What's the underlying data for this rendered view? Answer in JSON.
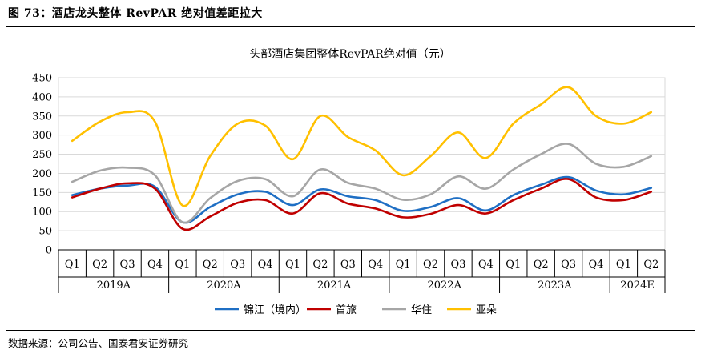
{
  "figure": {
    "title": "图 73：酒店龙头整体 RevPAR 绝对值差距拉大",
    "source": "数据来源：公司公告、国泰君安证券研究"
  },
  "chart_data": {
    "type": "line",
    "title": "头部酒店集团整体RevPAR绝对值（元）",
    "xlabel": "",
    "ylabel": "",
    "ylim": [
      0,
      450
    ],
    "yticks": [
      0,
      50,
      100,
      150,
      200,
      250,
      300,
      350,
      400,
      450
    ],
    "grid": true,
    "legend_position": "bottom",
    "categories": [
      "Q1",
      "Q2",
      "Q3",
      "Q4",
      "Q1",
      "Q2",
      "Q3",
      "Q4",
      "Q1",
      "Q2",
      "Q3",
      "Q4",
      "Q1",
      "Q2",
      "Q3",
      "Q4",
      "Q1",
      "Q2",
      "Q3",
      "Q4",
      "Q1",
      "Q2"
    ],
    "groups": [
      {
        "label": "2019A",
        "count": 4
      },
      {
        "label": "2020A",
        "count": 4
      },
      {
        "label": "2021A",
        "count": 4
      },
      {
        "label": "2022A",
        "count": 4
      },
      {
        "label": "2023A",
        "count": 4
      },
      {
        "label": "2024E",
        "count": 2
      }
    ],
    "series": [
      {
        "name": "锦江（境内）",
        "color": "#1f6fc4",
        "values": [
          143,
          160,
          168,
          165,
          72,
          112,
          145,
          152,
          117,
          158,
          140,
          130,
          102,
          112,
          135,
          103,
          143,
          170,
          190,
          155,
          145,
          162
        ]
      },
      {
        "name": "首旅",
        "color": "#c00000",
        "values": [
          137,
          160,
          174,
          160,
          55,
          87,
          123,
          130,
          95,
          148,
          121,
          108,
          85,
          94,
          117,
          95,
          130,
          160,
          185,
          137,
          130,
          152
        ]
      },
      {
        "name": "华住",
        "color": "#a6a6a6",
        "values": [
          178,
          207,
          215,
          195,
          72,
          135,
          180,
          185,
          140,
          210,
          175,
          160,
          131,
          145,
          192,
          160,
          210,
          250,
          277,
          225,
          217,
          245
        ]
      },
      {
        "name": "亚朵",
        "color": "#ffc000",
        "values": [
          285,
          335,
          360,
          335,
          116,
          245,
          330,
          325,
          237,
          350,
          295,
          260,
          195,
          245,
          307,
          240,
          330,
          380,
          425,
          350,
          330,
          360
        ]
      }
    ]
  }
}
